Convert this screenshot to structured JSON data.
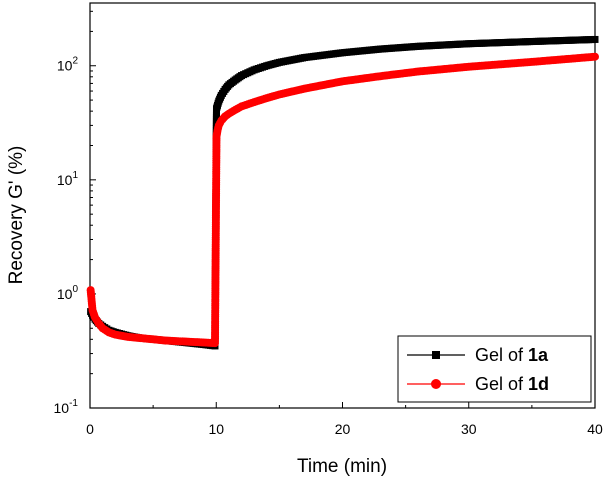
{
  "chart_data": {
    "type": "line",
    "title": "",
    "xlabel": "Time (min)",
    "ylabel": "Recovery G' (%)",
    "xlim": [
      0,
      40
    ],
    "ylim_log10": [
      -1,
      2.55
    ],
    "yscale": "log",
    "x_ticks": [
      0,
      10,
      20,
      30,
      40
    ],
    "x_tick_labels": [
      "0",
      "10",
      "20",
      "30",
      "40"
    ],
    "y_ticks": [
      0.1,
      1,
      10,
      100
    ],
    "y_tick_labels": [
      {
        "base": "10",
        "exp": "-1"
      },
      {
        "base": "10",
        "exp": "0"
      },
      {
        "base": "10",
        "exp": "1"
      },
      {
        "base": "10",
        "exp": "2"
      }
    ],
    "grid": false,
    "legend_position": "bottom-right",
    "series": [
      {
        "name_prefix": "Gel of ",
        "name_bold": "1a",
        "color": "#000000",
        "marker": "square",
        "x": [
          0.05,
          0.2,
          0.4,
          0.7,
          1.0,
          1.5,
          2,
          3,
          4,
          5,
          6,
          7,
          8,
          9,
          9.9,
          10.02,
          10.1,
          10.2,
          10.4,
          10.7,
          11,
          11.5,
          12,
          13,
          14,
          15,
          17,
          20,
          23,
          26,
          30,
          35,
          40
        ],
        "y": [
          0.7,
          0.65,
          0.6,
          0.55,
          0.52,
          0.48,
          0.46,
          0.43,
          0.41,
          0.4,
          0.39,
          0.38,
          0.37,
          0.36,
          0.35,
          42,
          45,
          49,
          55,
          62,
          68,
          75,
          82,
          92,
          100,
          107,
          118,
          130,
          140,
          148,
          156,
          163,
          170
        ]
      },
      {
        "name_prefix": "Gel of ",
        "name_bold": "1d",
        "color": "#ff0000",
        "marker": "circle",
        "x": [
          0.05,
          0.2,
          0.4,
          0.7,
          1.0,
          1.5,
          2,
          3,
          4,
          5,
          6,
          7,
          8,
          9,
          9.9,
          10.02,
          10.1,
          10.2,
          10.4,
          10.7,
          11,
          11.5,
          12,
          13,
          14,
          15,
          17,
          20,
          23,
          26,
          30,
          35,
          40
        ],
        "y": [
          1.08,
          0.72,
          0.62,
          0.55,
          0.5,
          0.46,
          0.44,
          0.42,
          0.41,
          0.4,
          0.39,
          0.385,
          0.38,
          0.375,
          0.37,
          24,
          27,
          30,
          33,
          36,
          38,
          41,
          44,
          48,
          52,
          56,
          63,
          73,
          81,
          89,
          98,
          108,
          120
        ]
      }
    ]
  }
}
